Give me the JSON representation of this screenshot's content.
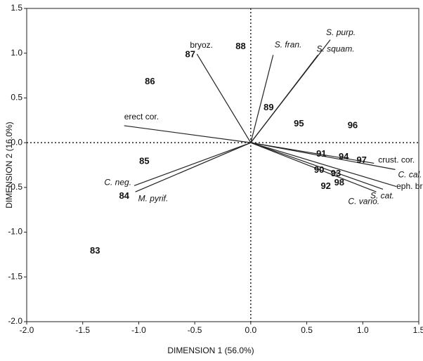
{
  "chart_data": {
    "type": "biplot",
    "x_label": "DIMENSION 1 (56.0%)",
    "y_label": "DIMENSION 2 (16.0%)",
    "xlim": [
      -2.0,
      1.5
    ],
    "ylim": [
      -2.0,
      1.5
    ],
    "xticks": [
      {
        "value": -2,
        "label": "-2.0"
      },
      {
        "value": -1.5,
        "label": "-1.5"
      },
      {
        "value": -1,
        "label": "-1.0"
      },
      {
        "value": -0.5,
        "label": "-0.5"
      },
      {
        "value": 0,
        "label": "0.0"
      },
      0.5,
      {
        "value": 1,
        "label": "1.0"
      },
      1.5
    ],
    "yticks": [
      {
        "value": -2,
        "label": "-2.0"
      },
      {
        "value": -1.5,
        "label": "-1.5"
      },
      {
        "value": -1,
        "label": "-1.0"
      },
      {
        "value": -0.5,
        "label": "-0.5"
      },
      {
        "value": 0,
        "label": "0.0"
      },
      0.5,
      {
        "value": 1,
        "label": "1.0"
      },
      1.5
    ],
    "points": {
      "labels": [
        "83",
        "84",
        "85",
        "86",
        "87",
        "88",
        "89",
        "95",
        "96",
        "91",
        "94",
        "97",
        "90",
        "93",
        "98",
        "92"
      ],
      "x": [
        -1.39,
        -1.13,
        -0.95,
        -0.9,
        -0.54,
        -0.09,
        0.16,
        0.43,
        0.91,
        0.63,
        0.83,
        0.99,
        0.61,
        0.76,
        0.79,
        0.67
      ],
      "y": [
        -1.21,
        -0.6,
        -0.21,
        0.68,
        0.98,
        1.07,
        0.39,
        0.21,
        0.19,
        -0.13,
        -0.16,
        -0.2,
        -0.31,
        -0.35,
        -0.45,
        -0.49
      ]
    },
    "vectors": {
      "labels": [
        "bryoz.",
        "S. fran.",
        "S. purp.",
        "S. squam.",
        "erect cor.",
        "C. neg.",
        "M. pyrif.",
        "crust. cor.",
        "C. cal.",
        "eph. brn.",
        "S. cat.",
        "C. vario."
      ],
      "x": [
        -0.48,
        0.2,
        0.71,
        0.6,
        -1.13,
        -1.04,
        -1.03,
        1.1,
        1.29,
        1.3,
        1.18,
        1.12
      ],
      "y": [
        0.99,
        0.98,
        1.15,
        0.98,
        0.19,
        -0.48,
        -0.55,
        -0.23,
        -0.3,
        -0.49,
        -0.52,
        -0.55
      ]
    }
  }
}
